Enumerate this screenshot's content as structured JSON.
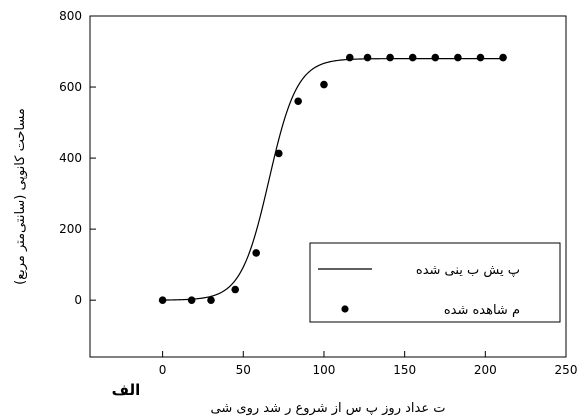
{
  "chart_data": {
    "type": "scatter",
    "panel_label": "الف",
    "xlabel": "ت عداد روز پ س از شروع ر شد روی شی",
    "ylabel": "مساحت کانوپی (سانتی‌متر مربع)",
    "xlim": [
      -45,
      250
    ],
    "ylim": [
      -160,
      800
    ],
    "x_ticks": [
      0,
      50,
      100,
      150,
      200,
      250
    ],
    "y_ticks": [
      0,
      200,
      400,
      600,
      800
    ],
    "grid": false,
    "legend_position": "bottom-right",
    "series": [
      {
        "name": "پ یش ب ینی شده",
        "kind": "line",
        "color": "#000000",
        "model": {
          "upper": 680,
          "midpoint": 66,
          "rate": 0.115
        },
        "x_range": [
          0,
          212
        ]
      },
      {
        "name": "م شاهده شده",
        "kind": "points",
        "color": "#000000",
        "x": [
          0,
          18,
          30,
          45,
          58,
          72,
          84,
          100,
          116,
          127,
          141,
          155,
          169,
          183,
          197,
          211
        ],
        "y": [
          0,
          0,
          0,
          30,
          133,
          413,
          560,
          607,
          683,
          683,
          683,
          683,
          683,
          683,
          683,
          683
        ]
      }
    ]
  }
}
